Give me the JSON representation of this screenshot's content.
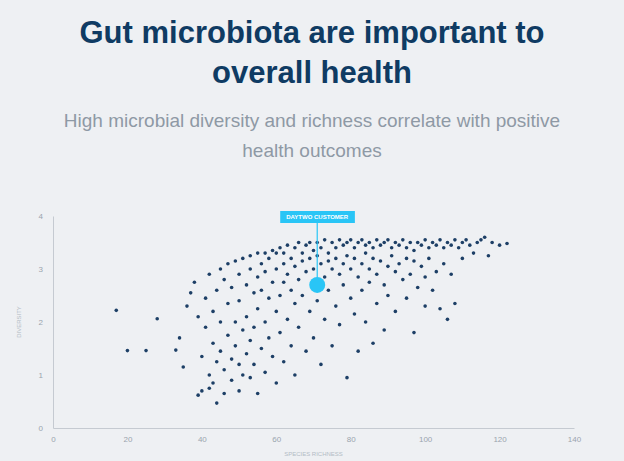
{
  "chart_data": {
    "type": "scatter",
    "title": "Gut microbiota are important to overall health",
    "subtitle": "High microbial diversity and richness correlate with positive health outcomes",
    "x_label": "SPECIES RICHNESS",
    "y_label": "DIVERSITY",
    "color": "#1d3f66",
    "marker": "circle",
    "xlim": [
      0,
      140
    ],
    "ylim": [
      0,
      4
    ],
    "xticks": [
      0,
      20,
      40,
      60,
      80,
      100,
      120,
      140
    ],
    "yticks": [
      0,
      1,
      2,
      3,
      4
    ],
    "grid": false,
    "annotations": [
      {
        "text": "DAYTWO CUSTOMER",
        "x": 71,
        "y": 2.7,
        "color": "#29c5f6"
      }
    ],
    "x": [
      17,
      20,
      25,
      28,
      33,
      34,
      35,
      36,
      37,
      38,
      39,
      39,
      40,
      40,
      41,
      41,
      42,
      42,
      42,
      43,
      43,
      43,
      44,
      44,
      44,
      45,
      45,
      45,
      46,
      46,
      46,
      47,
      47,
      47,
      48,
      48,
      48,
      49,
      49,
      49,
      50,
      50,
      50,
      50,
      51,
      51,
      51,
      52,
      52,
      52,
      53,
      53,
      53,
      53,
      54,
      54,
      54,
      55,
      55,
      55,
      55,
      56,
      56,
      56,
      57,
      57,
      57,
      57,
      58,
      58,
      58,
      59,
      59,
      59,
      60,
      60,
      60,
      60,
      61,
      61,
      61,
      62,
      62,
      62,
      62,
      63,
      63,
      63,
      64,
      64,
      64,
      65,
      65,
      65,
      65,
      66,
      66,
      66,
      67,
      67,
      67,
      68,
      68,
      68,
      69,
      69,
      69,
      70,
      70,
      70,
      70,
      71,
      71,
      71,
      72,
      72,
      72,
      73,
      73,
      73,
      74,
      74,
      74,
      75,
      75,
      75,
      76,
      76,
      76,
      77,
      77,
      77,
      78,
      78,
      78,
      79,
      79,
      79,
      80,
      80,
      80,
      81,
      81,
      81,
      82,
      82,
      82,
      83,
      83,
      83,
      84,
      84,
      84,
      85,
      85,
      85,
      86,
      86,
      86,
      87,
      87,
      87,
      88,
      88,
      89,
      89,
      89,
      90,
      90,
      90,
      91,
      91,
      92,
      92,
      92,
      93,
      93,
      94,
      94,
      95,
      95,
      95,
      96,
      96,
      97,
      97,
      97,
      98,
      98,
      99,
      99,
      100,
      100,
      100,
      101,
      101,
      102,
      102,
      103,
      103,
      104,
      104,
      105,
      105,
      106,
      106,
      107,
      107,
      108,
      108,
      109,
      110,
      110,
      111,
      112,
      113,
      114,
      115,
      116,
      117,
      118,
      120,
      122
    ],
    "values": [
      2.22,
      1.46,
      1.46,
      2.06,
      1.47,
      1.7,
      1.15,
      2.3,
      2.55,
      2.75,
      2.1,
      0.62,
      1.35,
      0.7,
      2.45,
      1.9,
      2.9,
      1.0,
      0.75,
      2.2,
      1.6,
      0.85,
      2.6,
      1.25,
      0.47,
      3.0,
      2.0,
      1.45,
      2.8,
      1.1,
      0.65,
      3.1,
      2.35,
      1.75,
      2.65,
      1.3,
      0.9,
      3.15,
      2.0,
      1.55,
      2.9,
      2.4,
      1.2,
      0.7,
      3.2,
      1.85,
      1.0,
      2.7,
      2.1,
      1.4,
      3.25,
      3.0,
      1.65,
      0.95,
      2.55,
      1.9,
      1.2,
      3.3,
      2.85,
      2.25,
      0.65,
      3.1,
      2.6,
      1.5,
      3.3,
      2.95,
      2.0,
      1.05,
      3.2,
      2.45,
      1.7,
      3.35,
      2.75,
      1.35,
      3.3,
      3.0,
      2.2,
      0.85,
      3.4,
      2.5,
      1.8,
      3.3,
      3.1,
      2.75,
      1.25,
      3.45,
      2.9,
      2.05,
      3.2,
      2.6,
      1.55,
      3.4,
      3.05,
      2.35,
      1.0,
      3.5,
      2.8,
      1.9,
      3.3,
      3.15,
      2.5,
      3.45,
      2.95,
      1.45,
      3.5,
      3.2,
      2.2,
      3.35,
      3.0,
      2.65,
      1.7,
      3.5,
      3.25,
      2.4,
      3.4,
      3.1,
      1.2,
      3.55,
      2.85,
      2.05,
      3.3,
      3.15,
      2.6,
      3.5,
      3.0,
      1.55,
      3.4,
      3.2,
      2.3,
      3.55,
      2.9,
      1.95,
      3.45,
      3.1,
      2.7,
      3.5,
      3.25,
      0.95,
      3.55,
      3.0,
      2.45,
      3.4,
      3.2,
      2.15,
      3.5,
      2.85,
      1.45,
      3.55,
      3.1,
      2.6,
      3.45,
      3.3,
      2.0,
      3.5,
      3.0,
      2.75,
      3.4,
      3.2,
      1.6,
      3.55,
      2.9,
      2.35,
      3.45,
      3.15,
      3.5,
      2.7,
      1.85,
      3.55,
      3.05,
      2.5,
      3.4,
      3.25,
      3.5,
      2.95,
      2.2,
      3.45,
      3.1,
      3.55,
      2.8,
      3.4,
      3.2,
      2.45,
      3.5,
      2.9,
      3.35,
      3.15,
      1.8,
      3.5,
      2.65,
      3.45,
      3.05,
      3.55,
      2.85,
      2.3,
      3.4,
      3.2,
      3.5,
      2.6,
      3.45,
      2.95,
      3.55,
      2.25,
      3.4,
      3.1,
      3.5,
      2.05,
      3.45,
      2.9,
      3.55,
      2.35,
      3.4,
      3.5,
      3.2,
      3.55,
      3.45,
      3.3,
      3.5,
      3.55,
      3.6,
      3.25,
      3.5,
      3.45,
      3.48
    ]
  }
}
